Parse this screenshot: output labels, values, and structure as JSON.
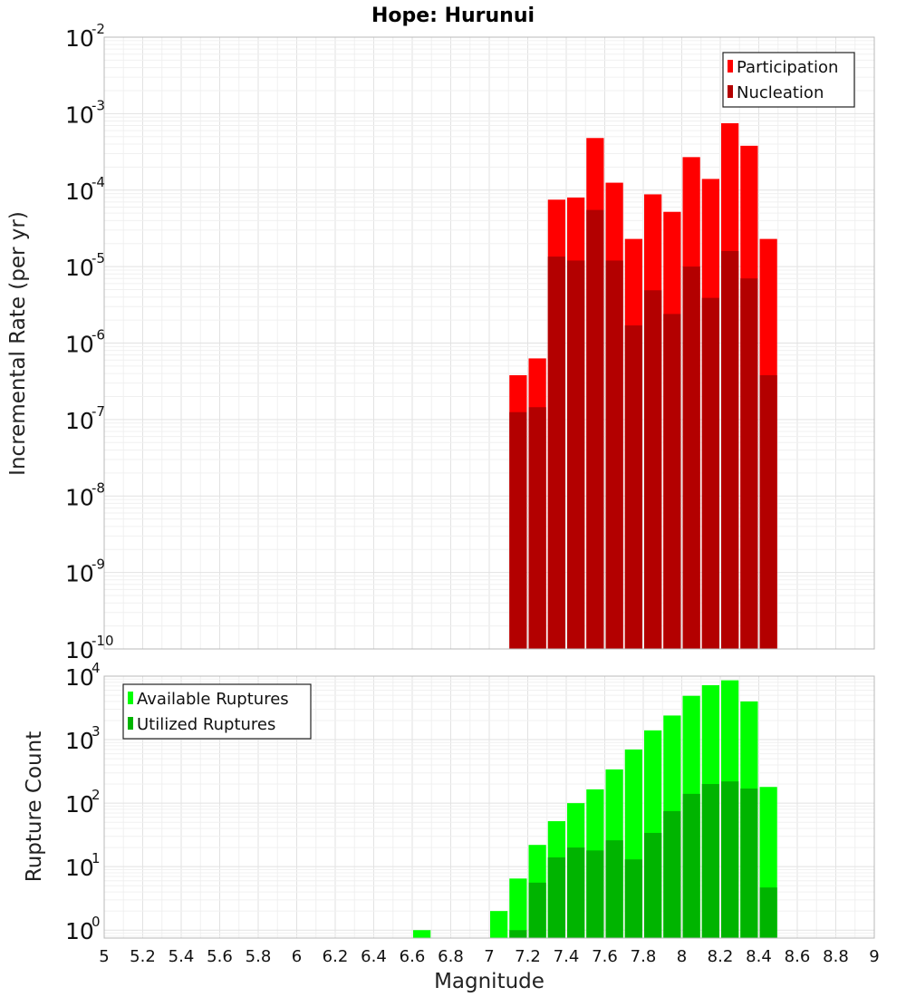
{
  "chart_data": [
    {
      "type": "bar",
      "title": "Hope: Hurunui",
      "ylabel": "Incremental Rate (per yr)",
      "xlabel": "",
      "xlim": [
        5,
        9
      ],
      "ylim": [
        1e-10,
        0.01
      ],
      "yscale": "log",
      "bin_width": 0.1,
      "legend_position": "top-right",
      "grid": true,
      "y_tick_exponents": [
        "-2",
        "-3",
        "-4",
        "-5",
        "-6",
        "-7",
        "-8",
        "-9",
        "-10"
      ],
      "x": [
        7.15,
        7.25,
        7.35,
        7.45,
        7.55,
        7.65,
        7.75,
        7.85,
        7.95,
        8.05,
        8.15,
        8.25,
        8.35,
        8.45
      ],
      "series": [
        {
          "name": "Participation",
          "color": "#ff0000",
          "values": [
            3.8e-07,
            6.3e-07,
            7.5e-05,
            8e-05,
            0.00048,
            0.000125,
            2.3e-05,
            8.8e-05,
            5.2e-05,
            0.00027,
            0.00014,
            0.00075,
            0.00038,
            2.3e-05
          ]
        },
        {
          "name": "Nucleation",
          "color": "#b30000",
          "values": [
            1.25e-07,
            1.45e-07,
            1.35e-05,
            1.2e-05,
            5.5e-05,
            1.2e-05,
            1.7e-06,
            4.9e-06,
            2.4e-06,
            1e-05,
            3.9e-06,
            1.6e-05,
            7e-06,
            3.8e-07
          ]
        }
      ]
    },
    {
      "type": "bar",
      "title": "",
      "ylabel": "Rupture Count",
      "xlabel": "Magnitude",
      "xlim": [
        5,
        9
      ],
      "ylim": [
        0.75,
        10000
      ],
      "yscale": "log",
      "bin_width": 0.1,
      "legend_position": "top-left",
      "grid": true,
      "y_tick_exponents": [
        "0",
        "1",
        "2",
        "3",
        "4"
      ],
      "x_ticks": [
        "5",
        "5.2",
        "5.4",
        "5.6",
        "5.8",
        "6",
        "6.2",
        "6.4",
        "6.6",
        "6.8",
        "7",
        "7.2",
        "7.4",
        "7.6",
        "7.8",
        "8",
        "8.2",
        "8.4",
        "8.6",
        "8.8",
        "9"
      ],
      "x": [
        6.65,
        7.05,
        7.15,
        7.25,
        7.35,
        7.45,
        7.55,
        7.65,
        7.75,
        7.85,
        7.95,
        8.05,
        8.15,
        8.25,
        8.35,
        8.45
      ],
      "series": [
        {
          "name": "Available Ruptures",
          "color": "#00ff00",
          "values": [
            1,
            2,
            6.5,
            22,
            52,
            100,
            165,
            340,
            700,
            1400,
            2400,
            4900,
            7200,
            8600,
            4000,
            180
          ]
        },
        {
          "name": "Utilized Ruptures",
          "color": "#00b400",
          "values": [
            null,
            null,
            1,
            5.6,
            14,
            20,
            18,
            26,
            13,
            34,
            75,
            140,
            200,
            220,
            170,
            4.7
          ]
        }
      ]
    }
  ]
}
